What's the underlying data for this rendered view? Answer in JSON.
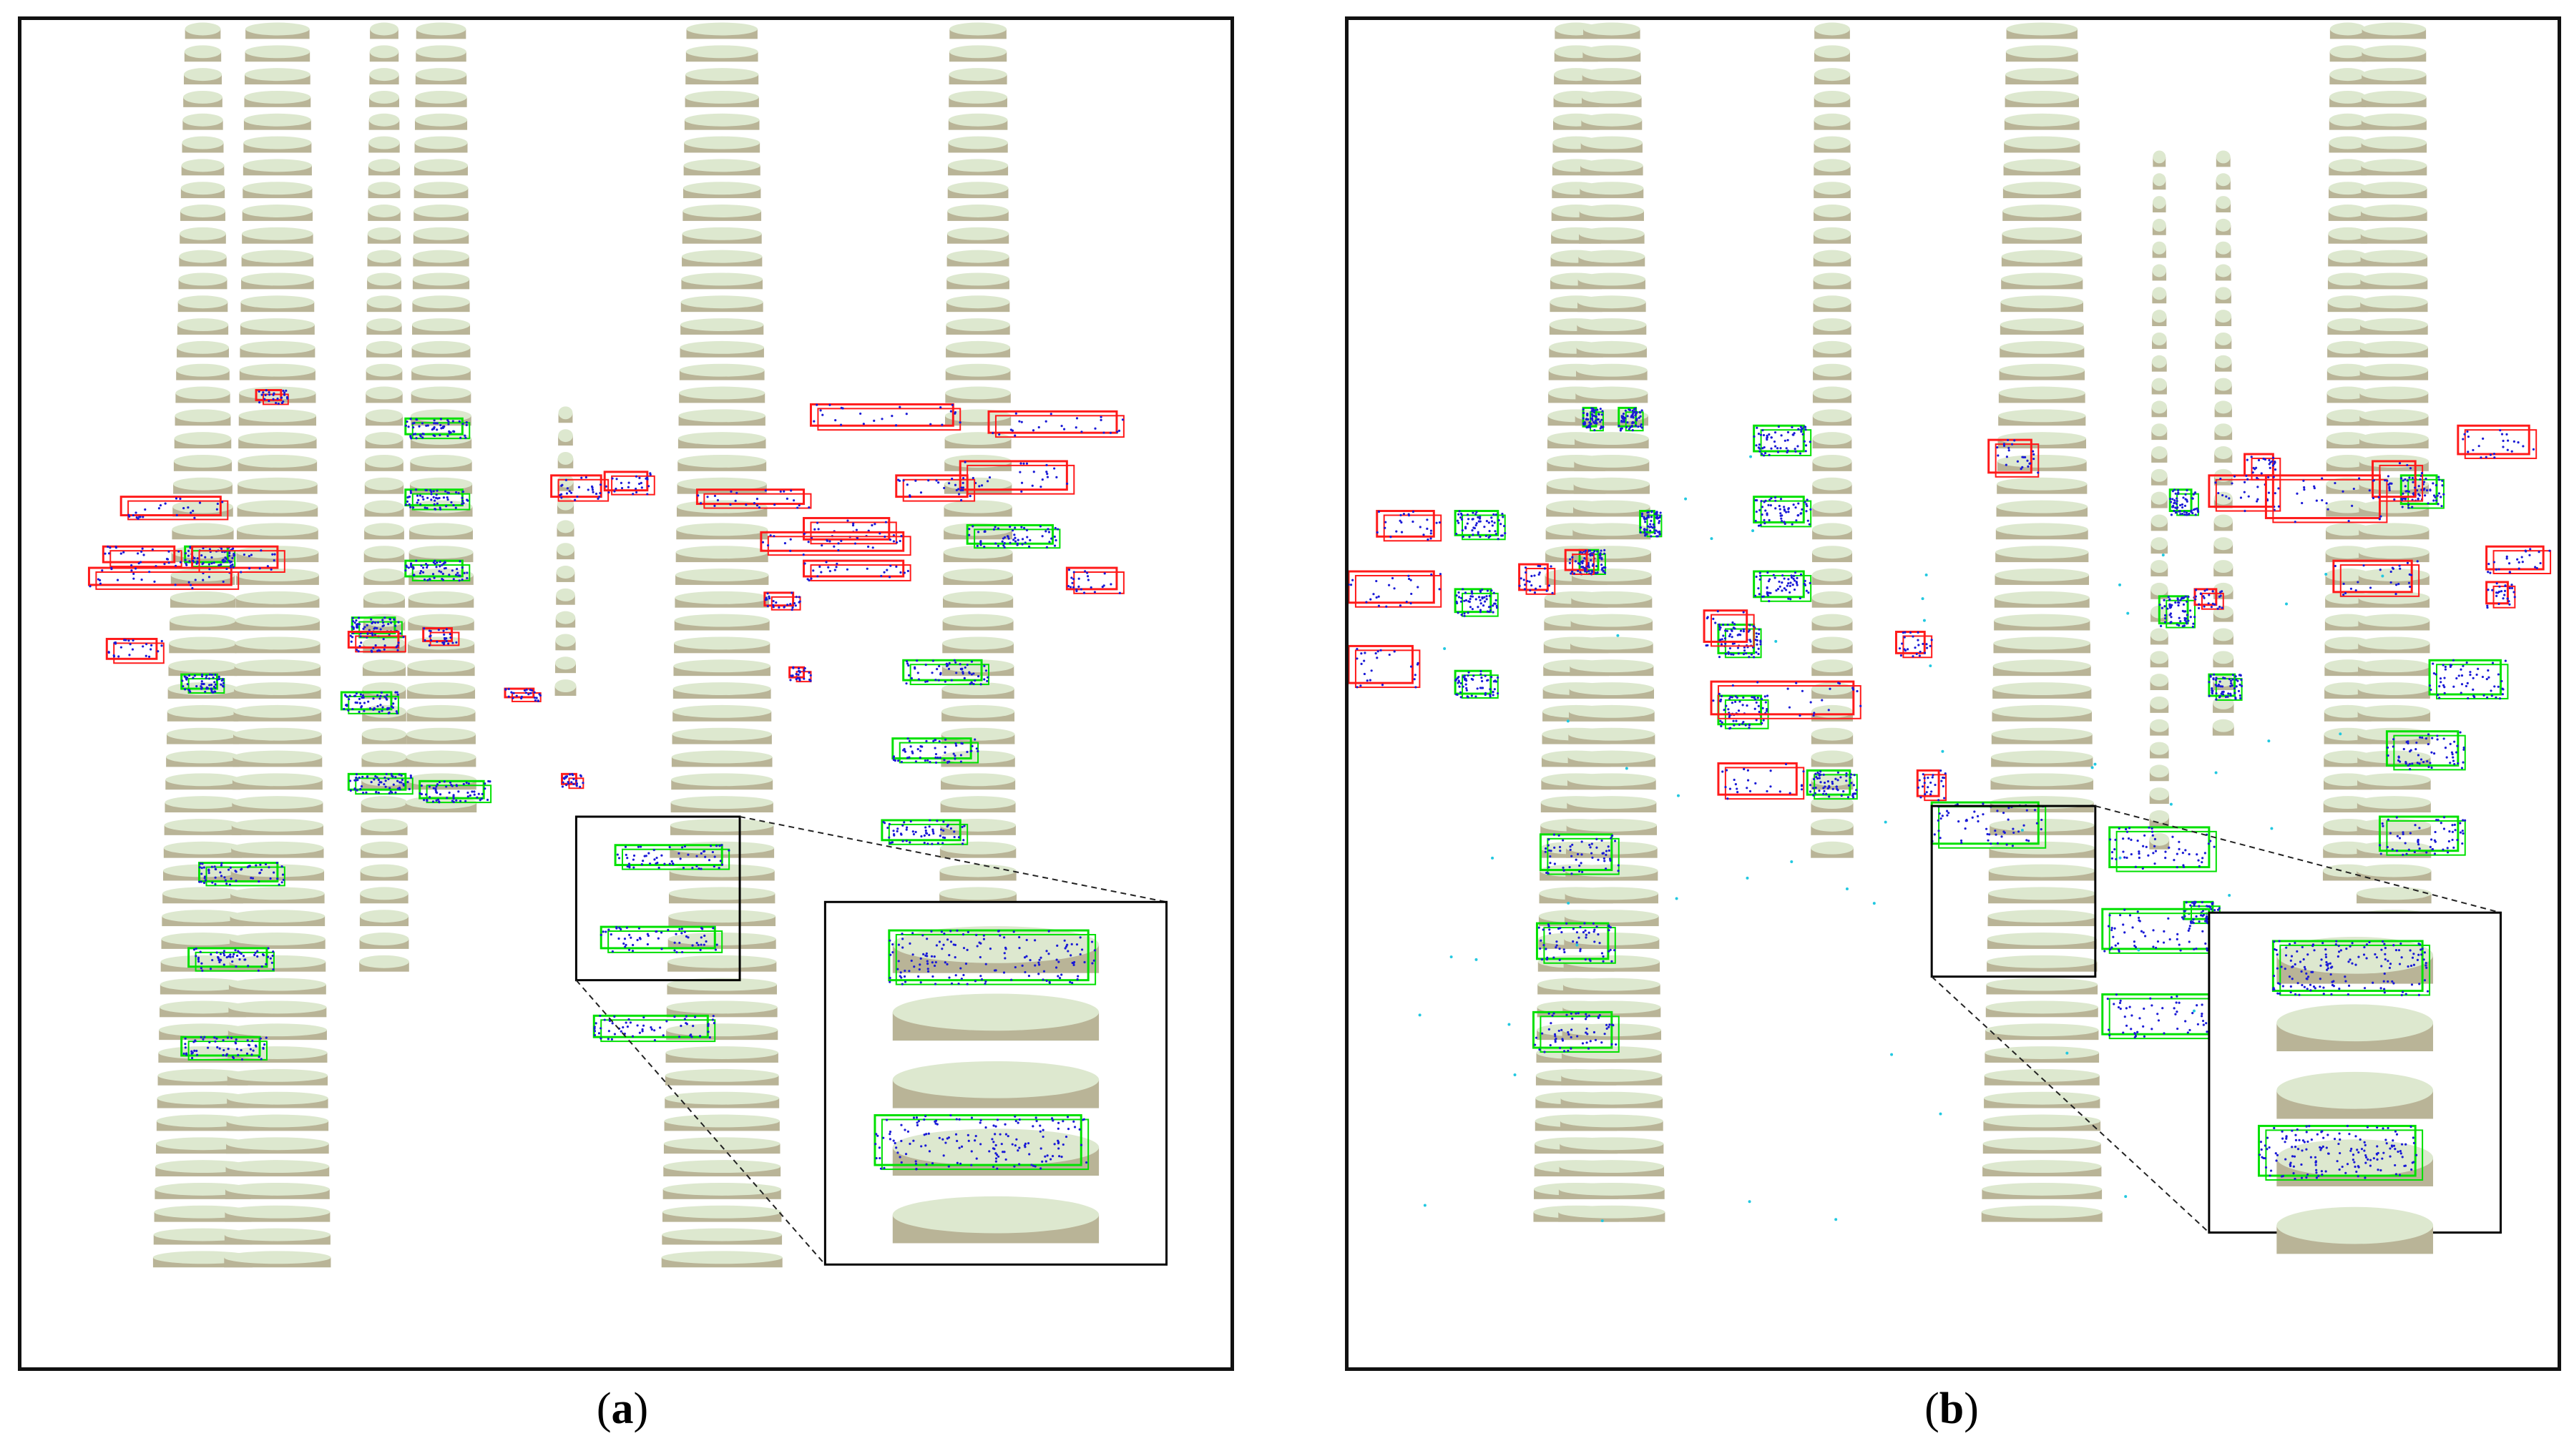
{
  "panels": [
    {
      "id": "a",
      "label": "a",
      "caption_open": "(",
      "caption_close": ")",
      "content": "lidar-point-cloud-stem-detection",
      "colors": {
        "stem": "#dde8cf",
        "stem_shadow": "#b9b497",
        "true_detection": "#00e000",
        "false_detection": "#ff1a1a",
        "points": "#1a1ad6",
        "inset_border": "#000000"
      }
    },
    {
      "id": "b",
      "label": "b",
      "caption_open": "(",
      "caption_close": ")",
      "content": "lidar-point-cloud-stem-detection",
      "colors": {
        "stem": "#dde8cf",
        "stem_shadow": "#b9b497",
        "true_detection": "#00e000",
        "false_detection": "#ff1a1a",
        "points": "#1a1ad6",
        "noise_points": "#22c8e0",
        "inset_border": "#000000"
      }
    }
  ]
}
